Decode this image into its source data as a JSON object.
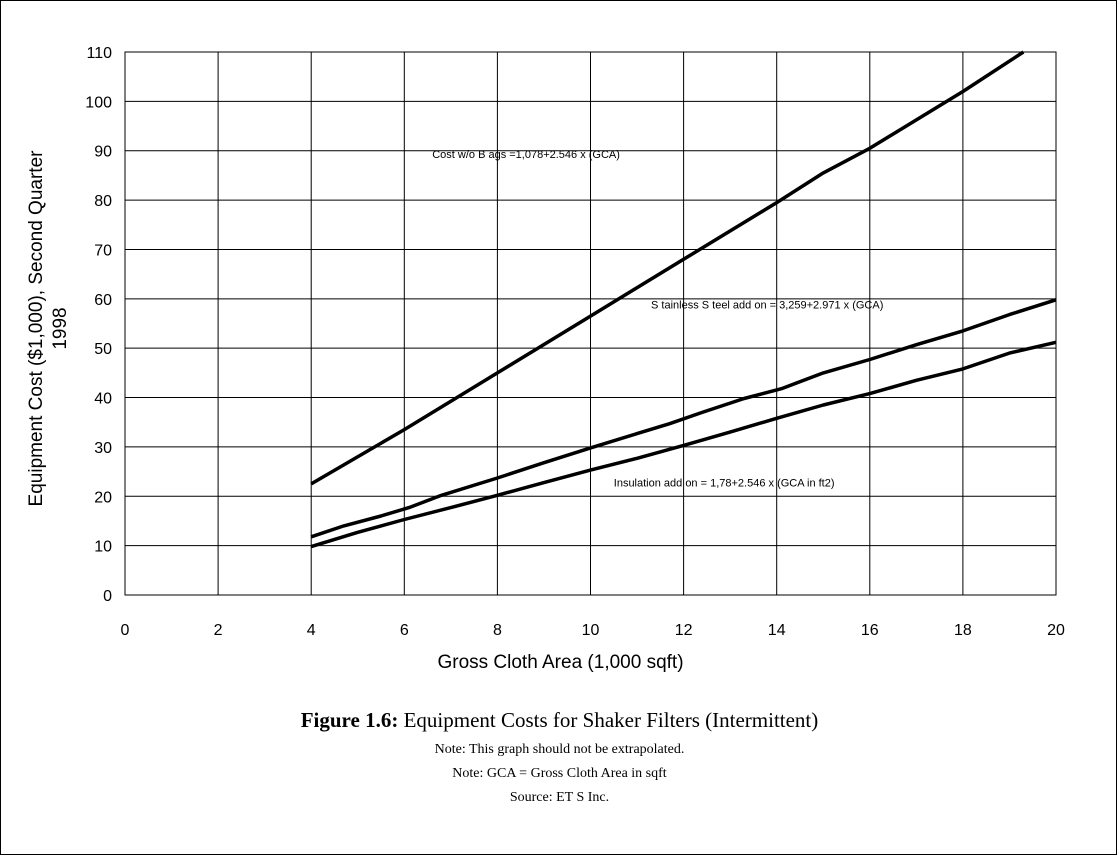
{
  "chart_data": {
    "type": "line",
    "xlabel": "Gross Cloth Area (1,000 sqft)",
    "ylabel_line1": "Equipment Cost ($1,000), Second Quarter",
    "ylabel_line2": "1998",
    "xlim": [
      0,
      20
    ],
    "ylim": [
      0,
      110
    ],
    "xticks": [
      0,
      2,
      4,
      6,
      8,
      10,
      12,
      14,
      16,
      18,
      20
    ],
    "yticks": [
      0,
      10,
      20,
      30,
      40,
      50,
      60,
      70,
      80,
      90,
      100,
      110
    ],
    "grid": true,
    "series": [
      {
        "x": [
          4,
          6,
          8,
          10,
          12,
          14,
          15,
          16,
          18,
          19.3
        ],
        "y": [
          22.5,
          33.5,
          45,
          56.5,
          68,
          79.5,
          85.5,
          90.5,
          102,
          110
        ]
      },
      {
        "x": [
          4,
          4.7,
          5.5,
          6.1,
          6.8,
          8,
          9,
          10,
          11,
          11.7,
          12.4,
          13.3,
          14.1,
          15,
          16,
          17,
          18,
          19,
          20
        ],
        "y": [
          11.8,
          14,
          16,
          17.7,
          20.2,
          23.7,
          26.8,
          29.8,
          32.7,
          34.7,
          37,
          39.8,
          41.8,
          45,
          47.7,
          50.7,
          53.5,
          56.8,
          59.8
        ]
      },
      {
        "x": [
          4,
          5,
          6,
          7,
          8,
          9,
          10,
          11,
          12,
          13,
          14,
          15,
          16,
          17,
          18,
          19,
          20
        ],
        "y": [
          9.8,
          12.7,
          15.3,
          17.7,
          20.2,
          22.8,
          25.3,
          27.7,
          30.3,
          33,
          35.8,
          38.5,
          40.8,
          43.5,
          45.8,
          49,
          51.2
        ]
      }
    ],
    "annotations": [
      {
        "text": "Cost w/o B ags =1,078+2.546 x (GCA)",
        "x": 6.6,
        "y": 89.3
      },
      {
        "text": "S tainless S teel add on = 3,259+2.971 x (GCA)",
        "x": 11.3,
        "y": 58.8
      },
      {
        "text": "Insulation add on = 1,78+2.546 x (GCA in ft2)",
        "x": 10.5,
        "y": 22.8
      }
    ]
  },
  "caption": {
    "figure_label": "Figure 1.6:",
    "figure_title": " Equipment Costs for Shaker Filters (Intermittent)",
    "note1": "Note: This graph should not be extrapolated.",
    "note2": "Note: GCA = Gross Cloth Area in sqft",
    "source": "Source: ET S Inc."
  }
}
